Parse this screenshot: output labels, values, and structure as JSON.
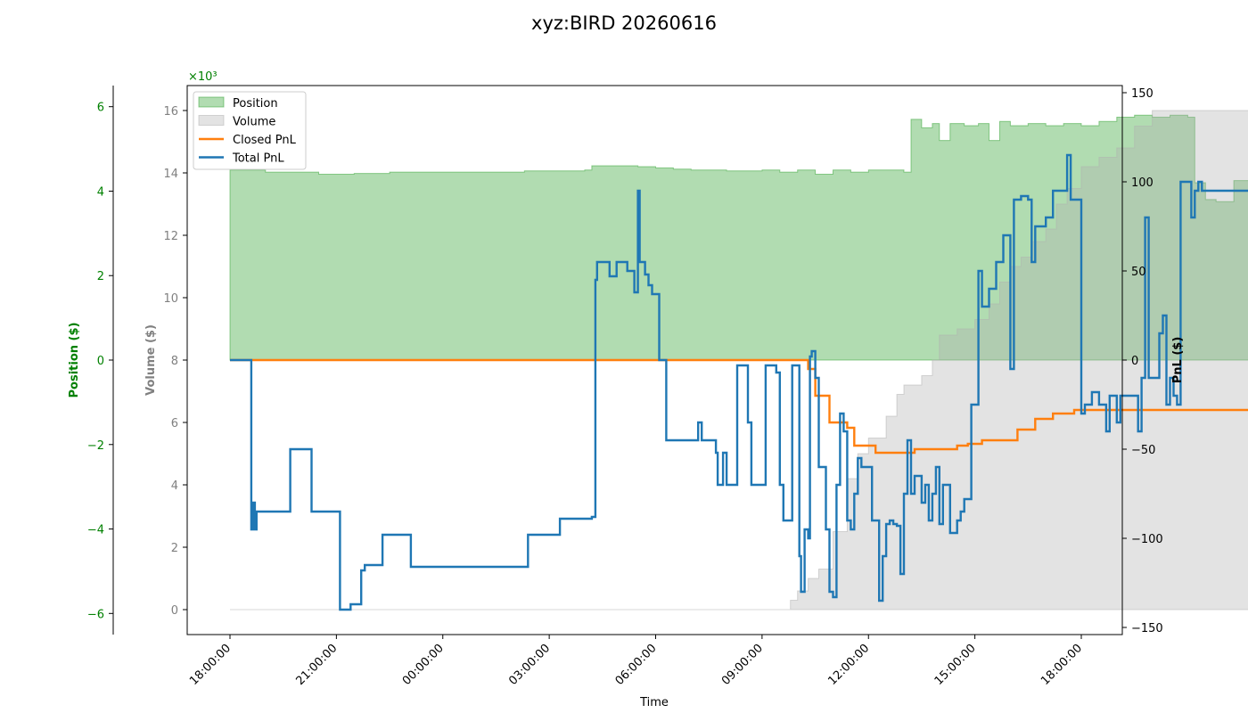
{
  "chart_data": {
    "type": "line",
    "title": "xyz:BIRD 20260616",
    "xlabel": "Time",
    "x_ticks": [
      "18:00:00",
      "21:00:00",
      "00:00:00",
      "03:00:00",
      "06:00:00",
      "09:00:00",
      "12:00:00",
      "15:00:00",
      "18:00:00"
    ],
    "xlim_hours": [
      -1.2,
      25.3
    ],
    "position_axis": {
      "label": "Position ($)",
      "color": "#008000",
      "ticks": [
        -6,
        -4,
        -2,
        0,
        2,
        4,
        6
      ],
      "ylim": [
        -6.5,
        6.5
      ],
      "multiplier": "×10³"
    },
    "volume_axis": {
      "label": "Volume ($)",
      "color": "#808080",
      "ticks": [
        0,
        2,
        4,
        6,
        8,
        10,
        12,
        14,
        16
      ],
      "ylim": [
        -0.8,
        16.8
      ]
    },
    "pnl_axis": {
      "label": "PnL ($)",
      "color": "#000000",
      "ticks": [
        -150,
        -100,
        -50,
        0,
        50,
        100,
        150
      ],
      "ylim": [
        -154,
        154
      ]
    },
    "legend": {
      "placement": "top-left",
      "entries": [
        {
          "label": "Position",
          "kind": "fill",
          "color": "#2ca02c"
        },
        {
          "label": "Volume",
          "kind": "fill",
          "color": "#b0b0b0"
        },
        {
          "label": "Closed PnL",
          "kind": "line",
          "color": "#ff7f0e"
        },
        {
          "label": "Total PnL",
          "kind": "line",
          "color": "#1f77b4"
        }
      ]
    },
    "series": [
      {
        "name": "Position",
        "axis": "position",
        "style": "step-fill",
        "color": "#2ca02c",
        "points": [
          [
            0,
            4.5
          ],
          [
            0.5,
            4.5
          ],
          [
            1,
            4.45
          ],
          [
            2,
            4.45
          ],
          [
            2.5,
            4.4
          ],
          [
            3.5,
            4.42
          ],
          [
            4.5,
            4.45
          ],
          [
            6,
            4.45
          ],
          [
            7,
            4.45
          ],
          [
            8,
            4.45
          ],
          [
            8.3,
            4.48
          ],
          [
            9,
            4.48
          ],
          [
            10,
            4.5
          ],
          [
            10.2,
            4.6
          ],
          [
            11,
            4.6
          ],
          [
            11.5,
            4.58
          ],
          [
            12,
            4.55
          ],
          [
            12.5,
            4.52
          ],
          [
            13,
            4.5
          ],
          [
            13.5,
            4.5
          ],
          [
            14,
            4.48
          ],
          [
            14.5,
            4.48
          ],
          [
            15,
            4.5
          ],
          [
            15.5,
            4.45
          ],
          [
            16,
            4.5
          ],
          [
            16.5,
            4.4
          ],
          [
            17,
            4.5
          ],
          [
            17.5,
            4.45
          ],
          [
            18,
            4.5
          ],
          [
            19.0,
            4.45
          ],
          [
            19.2,
            5.7
          ],
          [
            19.5,
            5.5
          ],
          [
            19.8,
            5.6
          ],
          [
            20.0,
            5.2
          ],
          [
            20.3,
            5.6
          ],
          [
            20.7,
            5.55
          ],
          [
            21.1,
            5.6
          ],
          [
            21.4,
            5.2
          ],
          [
            21.7,
            5.65
          ],
          [
            22.0,
            5.55
          ],
          [
            22.5,
            5.6
          ],
          [
            23.0,
            5.55
          ],
          [
            23.5,
            5.6
          ],
          [
            24.0,
            5.55
          ],
          [
            24.5,
            5.65
          ],
          [
            25.0,
            5.75
          ],
          [
            25.5,
            5.8
          ],
          [
            26.0,
            5.75
          ],
          [
            26.5,
            5.8
          ],
          [
            27.0,
            5.75
          ],
          [
            27.2,
            4.2
          ],
          [
            27.5,
            3.8
          ],
          [
            27.8,
            3.75
          ],
          [
            28.3,
            4.25
          ],
          [
            29.0,
            4.25
          ]
        ]
      },
      {
        "name": "Volume",
        "axis": "volume",
        "style": "step-fill",
        "color": "#b0b0b0",
        "points": [
          [
            0,
            0
          ],
          [
            15.8,
            0
          ],
          [
            15.8,
            0.3
          ],
          [
            16.0,
            0.6
          ],
          [
            16.3,
            1.0
          ],
          [
            16.6,
            1.3
          ],
          [
            17.0,
            2.5
          ],
          [
            17.4,
            4.2
          ],
          [
            17.7,
            5.0
          ],
          [
            18.0,
            5.5
          ],
          [
            18.5,
            6.2
          ],
          [
            18.8,
            6.9
          ],
          [
            19.0,
            7.2
          ],
          [
            19.5,
            7.5
          ],
          [
            19.8,
            8.0
          ],
          [
            20.0,
            8.8
          ],
          [
            20.5,
            9.0
          ],
          [
            21.0,
            9.3
          ],
          [
            21.4,
            9.8
          ],
          [
            21.7,
            10.5
          ],
          [
            22.0,
            11.0
          ],
          [
            22.3,
            11.3
          ],
          [
            22.6,
            11.8
          ],
          [
            23.0,
            12.2
          ],
          [
            23.3,
            13.0
          ],
          [
            23.6,
            13.5
          ],
          [
            24.0,
            14.2
          ],
          [
            24.5,
            14.5
          ],
          [
            25.0,
            14.8
          ],
          [
            25.5,
            15.5
          ],
          [
            26.0,
            16.0
          ],
          [
            29.0,
            16.0
          ]
        ]
      },
      {
        "name": "Closed PnL",
        "axis": "pnl",
        "style": "step",
        "color": "#ff7f0e",
        "points": [
          [
            0,
            0
          ],
          [
            16.2,
            0
          ],
          [
            16.3,
            -5
          ],
          [
            16.5,
            -20
          ],
          [
            16.7,
            -20
          ],
          [
            16.9,
            -35
          ],
          [
            17.2,
            -35
          ],
          [
            17.4,
            -38
          ],
          [
            17.5,
            -38
          ],
          [
            17.6,
            -48
          ],
          [
            18.1,
            -48
          ],
          [
            18.2,
            -52
          ],
          [
            19.2,
            -52
          ],
          [
            19.3,
            -50
          ],
          [
            20.4,
            -50
          ],
          [
            20.5,
            -48
          ],
          [
            20.7,
            -48
          ],
          [
            20.8,
            -47
          ],
          [
            21.0,
            -47
          ],
          [
            21.2,
            -45
          ],
          [
            22.0,
            -45
          ],
          [
            22.2,
            -39
          ],
          [
            22.5,
            -39
          ],
          [
            22.7,
            -33
          ],
          [
            23.0,
            -33
          ],
          [
            23.2,
            -30
          ],
          [
            23.6,
            -30
          ],
          [
            23.8,
            -28
          ],
          [
            29.0,
            -28
          ]
        ]
      },
      {
        "name": "Total PnL",
        "axis": "pnl",
        "style": "step",
        "color": "#1f77b4",
        "points": [
          [
            0,
            0
          ],
          [
            0.5,
            0
          ],
          [
            0.6,
            -95
          ],
          [
            0.65,
            -80
          ],
          [
            0.7,
            -95
          ],
          [
            0.75,
            -85
          ],
          [
            1.0,
            -85
          ],
          [
            1.7,
            -85
          ],
          [
            1.7,
            -50
          ],
          [
            2.3,
            -50
          ],
          [
            2.3,
            -85
          ],
          [
            3.0,
            -85
          ],
          [
            3.1,
            -140
          ],
          [
            3.4,
            -140
          ],
          [
            3.4,
            -137
          ],
          [
            3.6,
            -137
          ],
          [
            3.7,
            -118
          ],
          [
            3.8,
            -115
          ],
          [
            4.3,
            -115
          ],
          [
            4.3,
            -98
          ],
          [
            5.1,
            -98
          ],
          [
            5.1,
            -116
          ],
          [
            7.0,
            -116
          ],
          [
            7.5,
            -116
          ],
          [
            8.0,
            -116
          ],
          [
            8.3,
            -116
          ],
          [
            8.4,
            -98
          ],
          [
            9.1,
            -98
          ],
          [
            9.3,
            -89
          ],
          [
            10.0,
            -89
          ],
          [
            10.2,
            -88
          ],
          [
            10.3,
            45
          ],
          [
            10.35,
            55
          ],
          [
            10.6,
            55
          ],
          [
            10.7,
            47
          ],
          [
            10.8,
            47
          ],
          [
            10.9,
            55
          ],
          [
            11.1,
            55
          ],
          [
            11.2,
            50
          ],
          [
            11.3,
            50
          ],
          [
            11.4,
            38
          ],
          [
            11.5,
            95
          ],
          [
            11.55,
            55
          ],
          [
            11.7,
            48
          ],
          [
            11.8,
            42
          ],
          [
            11.9,
            37
          ],
          [
            12.0,
            37
          ],
          [
            12.1,
            0
          ],
          [
            12.3,
            -45
          ],
          [
            12.5,
            -45
          ],
          [
            13.0,
            -45
          ],
          [
            13.2,
            -45
          ],
          [
            13.2,
            -35
          ],
          [
            13.3,
            -45
          ],
          [
            13.6,
            -45
          ],
          [
            13.7,
            -52
          ],
          [
            13.75,
            -70
          ],
          [
            13.8,
            -70
          ],
          [
            13.9,
            -52
          ],
          [
            14.0,
            -70
          ],
          [
            14.2,
            -70
          ],
          [
            14.3,
            -3
          ],
          [
            14.5,
            -3
          ],
          [
            14.6,
            -35
          ],
          [
            14.7,
            -70
          ],
          [
            15.0,
            -70
          ],
          [
            15.1,
            -3
          ],
          [
            15.3,
            -3
          ],
          [
            15.4,
            -7
          ],
          [
            15.5,
            -70
          ],
          [
            15.6,
            -90
          ],
          [
            15.8,
            -90
          ],
          [
            15.85,
            -3
          ],
          [
            15.9,
            -3
          ],
          [
            16.0,
            -3
          ],
          [
            16.05,
            -110
          ],
          [
            16.1,
            -130
          ],
          [
            16.2,
            -95
          ],
          [
            16.3,
            -100
          ],
          [
            16.35,
            2
          ],
          [
            16.4,
            5
          ],
          [
            16.5,
            -10
          ],
          [
            16.6,
            -60
          ],
          [
            16.8,
            -95
          ],
          [
            16.9,
            -130
          ],
          [
            17.0,
            -133
          ],
          [
            17.1,
            -70
          ],
          [
            17.2,
            -30
          ],
          [
            17.3,
            -40
          ],
          [
            17.4,
            -90
          ],
          [
            17.5,
            -95
          ],
          [
            17.6,
            -75
          ],
          [
            17.7,
            -55
          ],
          [
            17.8,
            -60
          ],
          [
            18.0,
            -60
          ],
          [
            18.1,
            -90
          ],
          [
            18.2,
            -90
          ],
          [
            18.3,
            -135
          ],
          [
            18.4,
            -110
          ],
          [
            18.5,
            -92
          ],
          [
            18.6,
            -90
          ],
          [
            18.7,
            -92
          ],
          [
            18.8,
            -93
          ],
          [
            18.9,
            -120
          ],
          [
            19.0,
            -75
          ],
          [
            19.1,
            -45
          ],
          [
            19.2,
            -75
          ],
          [
            19.3,
            -65
          ],
          [
            19.5,
            -80
          ],
          [
            19.6,
            -70
          ],
          [
            19.7,
            -90
          ],
          [
            19.8,
            -75
          ],
          [
            19.9,
            -60
          ],
          [
            20.0,
            -92
          ],
          [
            20.1,
            -70
          ],
          [
            20.2,
            -70
          ],
          [
            20.3,
            -97
          ],
          [
            20.5,
            -90
          ],
          [
            20.6,
            -85
          ],
          [
            20.7,
            -78
          ],
          [
            20.9,
            -25
          ],
          [
            21.0,
            -25
          ],
          [
            21.1,
            50
          ],
          [
            21.2,
            30
          ],
          [
            21.4,
            40
          ],
          [
            21.5,
            40
          ],
          [
            21.6,
            55
          ],
          [
            21.7,
            55
          ],
          [
            21.8,
            70
          ],
          [
            21.9,
            70
          ],
          [
            22.0,
            -5
          ],
          [
            22.1,
            90
          ],
          [
            22.3,
            92
          ],
          [
            22.5,
            90
          ],
          [
            22.6,
            55
          ],
          [
            22.7,
            75
          ],
          [
            22.8,
            75
          ],
          [
            23.0,
            80
          ],
          [
            23.2,
            95
          ],
          [
            23.4,
            95
          ],
          [
            23.6,
            115
          ],
          [
            23.7,
            90
          ],
          [
            23.8,
            90
          ],
          [
            24.0,
            -30
          ],
          [
            24.1,
            -25
          ],
          [
            24.3,
            -18
          ],
          [
            24.5,
            -25
          ],
          [
            24.7,
            -40
          ],
          [
            24.8,
            -20
          ],
          [
            24.9,
            -20
          ],
          [
            25.0,
            -35
          ],
          [
            25.1,
            -20
          ],
          [
            25.3,
            -20
          ],
          [
            25.5,
            -20
          ],
          [
            25.6,
            -40
          ],
          [
            25.7,
            -10
          ],
          [
            25.8,
            80
          ],
          [
            25.9,
            -10
          ],
          [
            26.1,
            -10
          ],
          [
            26.2,
            15
          ],
          [
            26.3,
            25
          ],
          [
            26.4,
            -25
          ],
          [
            26.5,
            -10
          ],
          [
            26.6,
            -20
          ],
          [
            26.7,
            -25
          ],
          [
            26.8,
            100
          ],
          [
            27.0,
            100
          ],
          [
            27.1,
            80
          ],
          [
            27.2,
            95
          ],
          [
            27.3,
            100
          ],
          [
            27.4,
            95
          ],
          [
            28.0,
            95
          ],
          [
            29.0,
            95
          ]
        ]
      }
    ]
  }
}
